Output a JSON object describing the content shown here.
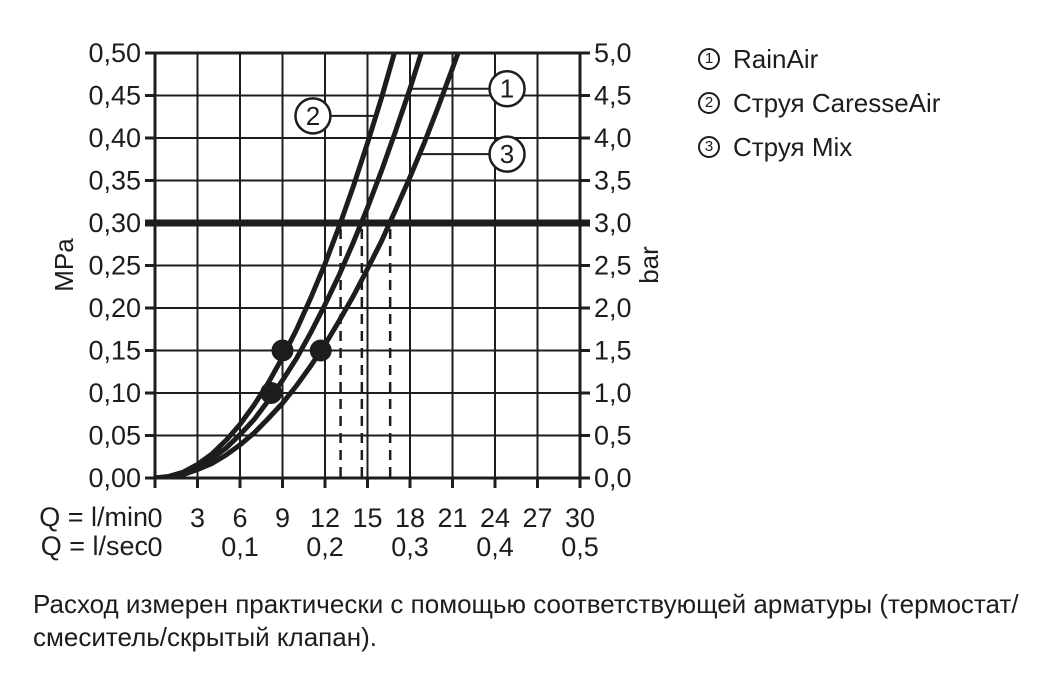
{
  "page": {
    "background": "#ffffff",
    "ink": "#1d1d1b"
  },
  "legend": {
    "items": [
      {
        "marker": "1",
        "label": "RainAir"
      },
      {
        "marker": "2",
        "label": "Струя CaresseAir"
      },
      {
        "marker": "3",
        "label": "Струя Mix"
      }
    ]
  },
  "axes": {
    "x_lmin_label": "Q = l/min",
    "x_lsec_label": "Q = l/sec",
    "y_left_label": "MPa",
    "y_right_label": "bar"
  },
  "caption": {
    "lines": [
      "Расход измерен практически с помощью соответствующей арматуры (термостат/",
      "смеситель/скрытый клапан)."
    ]
  },
  "chart_data": {
    "type": "line",
    "title": "",
    "grid": true,
    "x_axis": {
      "label": "Q = l/min",
      "range_lmin": [
        0,
        30
      ],
      "ticks_lmin": [
        "0",
        "3",
        "6",
        "9",
        "12",
        "15",
        "18",
        "21",
        "24",
        "27",
        "30"
      ],
      "secondary_label": "Q = l/sec",
      "ticks_lsec": [
        {
          "q_lmin": 0,
          "label": "0"
        },
        {
          "q_lmin": 6,
          "label": "0,1"
        },
        {
          "q_lmin": 12,
          "label": "0,2"
        },
        {
          "q_lmin": 18,
          "label": "0,3"
        },
        {
          "q_lmin": 24,
          "label": "0,4"
        },
        {
          "q_lmin": 30,
          "label": "0,5"
        }
      ]
    },
    "y_axis_left": {
      "label": "MPa",
      "range": [
        0,
        0.5
      ],
      "step": 0.05,
      "tick_labels": [
        "0,00",
        "0,05",
        "0,10",
        "0,15",
        "0,20",
        "0,25",
        "0,30",
        "0,35",
        "0,40",
        "0,45",
        "0,50"
      ]
    },
    "y_axis_right": {
      "label": "bar",
      "range": [
        0,
        5
      ],
      "step": 0.5,
      "tick_labels": [
        "0,0",
        "0,5",
        "1,0",
        "1,5",
        "2,0",
        "2,5",
        "3,0",
        "3,5",
        "4,0",
        "4,5",
        "5,0"
      ]
    },
    "reference_line_mpa": 0.3,
    "drop_lines_lmin": [
      13.1,
      14.6,
      16.6
    ],
    "series": [
      {
        "id": "1",
        "name": "RainAir",
        "points_q_mpa": [
          [
            0,
            0
          ],
          [
            1,
            0.001
          ],
          [
            2,
            0.006
          ],
          [
            3,
            0.013
          ],
          [
            4,
            0.023
          ],
          [
            5,
            0.035
          ],
          [
            6,
            0.051
          ],
          [
            7,
            0.069
          ],
          [
            8,
            0.091
          ],
          [
            9,
            0.115
          ],
          [
            10,
            0.141
          ],
          [
            11,
            0.171
          ],
          [
            12,
            0.204
          ],
          [
            13,
            0.239
          ],
          [
            14,
            0.277
          ],
          [
            15,
            0.318
          ],
          [
            16,
            0.362
          ],
          [
            17,
            0.409
          ],
          [
            18,
            0.458
          ],
          [
            19,
            0.511
          ]
        ]
      },
      {
        "id": "2",
        "name": "Струя CaresseAir",
        "points_q_mpa": [
          [
            0,
            0
          ],
          [
            1,
            0.002
          ],
          [
            2,
            0.007
          ],
          [
            3,
            0.016
          ],
          [
            4,
            0.028
          ],
          [
            5,
            0.044
          ],
          [
            6,
            0.063
          ],
          [
            7,
            0.086
          ],
          [
            8,
            0.112
          ],
          [
            9,
            0.142
          ],
          [
            10,
            0.175
          ],
          [
            11,
            0.212
          ],
          [
            12,
            0.252
          ],
          [
            13,
            0.296
          ],
          [
            14,
            0.343
          ],
          [
            15,
            0.394
          ],
          [
            16,
            0.448
          ],
          [
            17,
            0.506
          ]
        ]
      },
      {
        "id": "3",
        "name": "Струя Mix",
        "points_q_mpa": [
          [
            0,
            0
          ],
          [
            1,
            0.001
          ],
          [
            2,
            0.004
          ],
          [
            3,
            0.01
          ],
          [
            4,
            0.017
          ],
          [
            5,
            0.027
          ],
          [
            6,
            0.039
          ],
          [
            7,
            0.053
          ],
          [
            8,
            0.07
          ],
          [
            9,
            0.088
          ],
          [
            10,
            0.109
          ],
          [
            11,
            0.132
          ],
          [
            12,
            0.157
          ],
          [
            13,
            0.185
          ],
          [
            14,
            0.214
          ],
          [
            15,
            0.246
          ],
          [
            16,
            0.279
          ],
          [
            17,
            0.316
          ],
          [
            18,
            0.354
          ],
          [
            19,
            0.394
          ],
          [
            20,
            0.437
          ],
          [
            21,
            0.482
          ],
          [
            22,
            0.528
          ]
        ]
      }
    ],
    "markers_q_mpa": [
      [
        9,
        0.15
      ],
      [
        11.7,
        0.15
      ],
      [
        8.2,
        0.1
      ]
    ],
    "callouts": [
      {
        "label": "1",
        "q": 24.85,
        "mpa": 0.458,
        "leader_q": 18.0
      },
      {
        "label": "2",
        "q": 11.15,
        "mpa": 0.426,
        "leader_q": 15.6
      },
      {
        "label": "3",
        "q": 24.85,
        "mpa": 0.381,
        "leader_q": 18.7
      }
    ]
  }
}
